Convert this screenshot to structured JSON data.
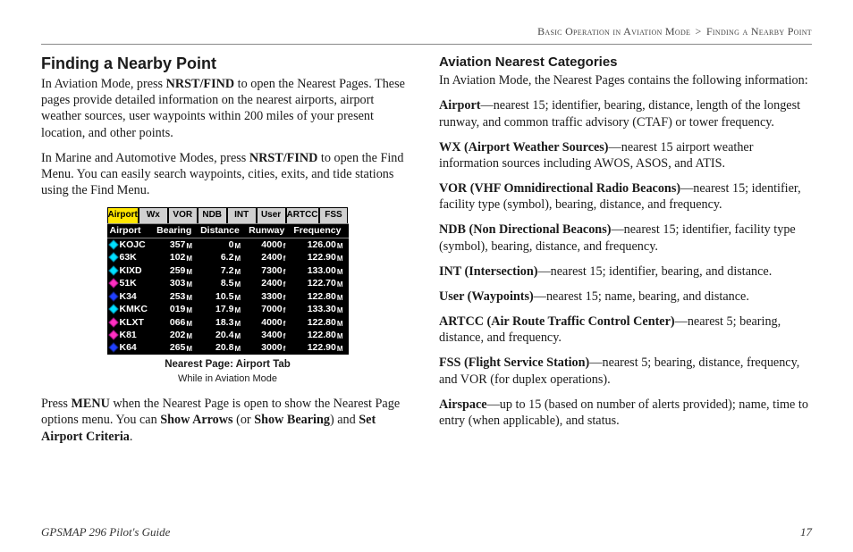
{
  "breadcrumb": {
    "section": "Basic Operation in Aviation Mode",
    "sep": ">",
    "sub": "Finding a Nearby Point"
  },
  "left": {
    "h2": "Finding a Nearby Point",
    "p1a": "In Aviation Mode, press ",
    "p1b": "NRST/FIND",
    "p1c": " to open the Nearest Pages. These pages provide detailed information on the nearest airports, airport weather sources, user waypoints within 200 miles of your present location, and other points.",
    "p2a": "In Marine and Automotive Modes, press ",
    "p2b": "NRST/FIND",
    "p2c": " to open the Find Menu. You can easily search waypoints, cities, exits, and tide stations using the Find Menu.",
    "caption": "Nearest Page: Airport Tab",
    "subcaption": "While in Aviation Mode",
    "p3a": "Press ",
    "p3b": "MENU",
    "p3c": " when the Nearest Page is open to show the Nearest Page options menu. You can ",
    "p3d": "Show Arrows",
    "p3e": " (or ",
    "p3f": "Show Bearing",
    "p3g": ") and ",
    "p3h": "Set Airport Criteria",
    "p3i": "."
  },
  "gps": {
    "tabs": [
      "Airport",
      "Wx",
      "VOR",
      "NDB",
      "INT",
      "User",
      "ARTCC",
      "FSS"
    ],
    "headers": [
      "Airport",
      "Bearing",
      "Distance",
      "Runway",
      "Frequency"
    ],
    "rows": [
      {
        "c": "cyan",
        "id": "KOJC",
        "b": "357",
        "bu": "M",
        "d": "0",
        "du": "M",
        "r": "4000",
        "ru": "f",
        "f": "126.00",
        "fu": "M"
      },
      {
        "c": "cyan",
        "id": "63K",
        "b": "102",
        "bu": "M",
        "d": "6.2",
        "du": "M",
        "r": "2400",
        "ru": "f",
        "f": "122.90",
        "fu": "M"
      },
      {
        "c": "cyan",
        "id": "KIXD",
        "b": "259",
        "bu": "M",
        "d": "7.2",
        "du": "M",
        "r": "7300",
        "ru": "f",
        "f": "133.00",
        "fu": "M"
      },
      {
        "c": "magenta",
        "id": "51K",
        "b": "303",
        "bu": "M",
        "d": "8.5",
        "du": "M",
        "r": "2400",
        "ru": "f",
        "f": "122.70",
        "fu": "M"
      },
      {
        "c": "blue",
        "id": "K34",
        "b": "253",
        "bu": "M",
        "d": "10.5",
        "du": "M",
        "r": "3300",
        "ru": "f",
        "f": "122.80",
        "fu": "M"
      },
      {
        "c": "cyan",
        "id": "KMKC",
        "b": "019",
        "bu": "M",
        "d": "17.9",
        "du": "M",
        "r": "7000",
        "ru": "f",
        "f": "133.30",
        "fu": "M"
      },
      {
        "c": "magenta",
        "id": "KLXT",
        "b": "066",
        "bu": "M",
        "d": "18.3",
        "du": "M",
        "r": "4000",
        "ru": "f",
        "f": "122.80",
        "fu": "M"
      },
      {
        "c": "magenta",
        "id": "K81",
        "b": "202",
        "bu": "M",
        "d": "20.4",
        "du": "M",
        "r": "3400",
        "ru": "f",
        "f": "122.80",
        "fu": "M"
      },
      {
        "c": "blue",
        "id": "K64",
        "b": "265",
        "bu": "M",
        "d": "20.8",
        "du": "M",
        "r": "3000",
        "ru": "f",
        "f": "122.90",
        "fu": "M"
      }
    ]
  },
  "right": {
    "h3": "Aviation Nearest Categories",
    "intro": "In Aviation Mode, the Nearest Pages contains the following information:",
    "items": [
      {
        "t": "Airport",
        "d": "—nearest 15; identifier, bearing, distance, length of the longest runway, and common traffic advisory (CTAF) or tower frequency."
      },
      {
        "t": "WX (Airport Weather Sources)",
        "d": "—nearest 15 airport weather information sources including AWOS, ASOS, and ATIS."
      },
      {
        "t": "VOR (VHF Omnidirectional Radio Beacons)",
        "d": "—nearest 15; identifier, facility type (symbol), bearing, distance, and frequency."
      },
      {
        "t": "NDB (Non Directional Beacons)",
        "d": "—nearest 15; identifier, facility type (symbol), bearing, distance, and frequency."
      },
      {
        "t": "INT (Intersection)",
        "d": "—nearest 15; identifier, bearing, and distance."
      },
      {
        "t": "User (Waypoints)",
        "d": "—nearest 15; name, bearing, and distance."
      },
      {
        "t": "ARTCC (Air Route Traffic Control Center)",
        "d": "—nearest 5; bearing, distance, and frequency."
      },
      {
        "t": "FSS (Flight Service Station)",
        "d": "—nearest 5; bearing, distance, frequency, and VOR (for duplex operations)."
      },
      {
        "t": "Airspace",
        "d": "—up to 15 (based on number of alerts provided); name, time to entry (when applicable), and status."
      }
    ]
  },
  "footer": {
    "guide": "GPSMAP 296 Pilot's Guide",
    "page": "17"
  }
}
